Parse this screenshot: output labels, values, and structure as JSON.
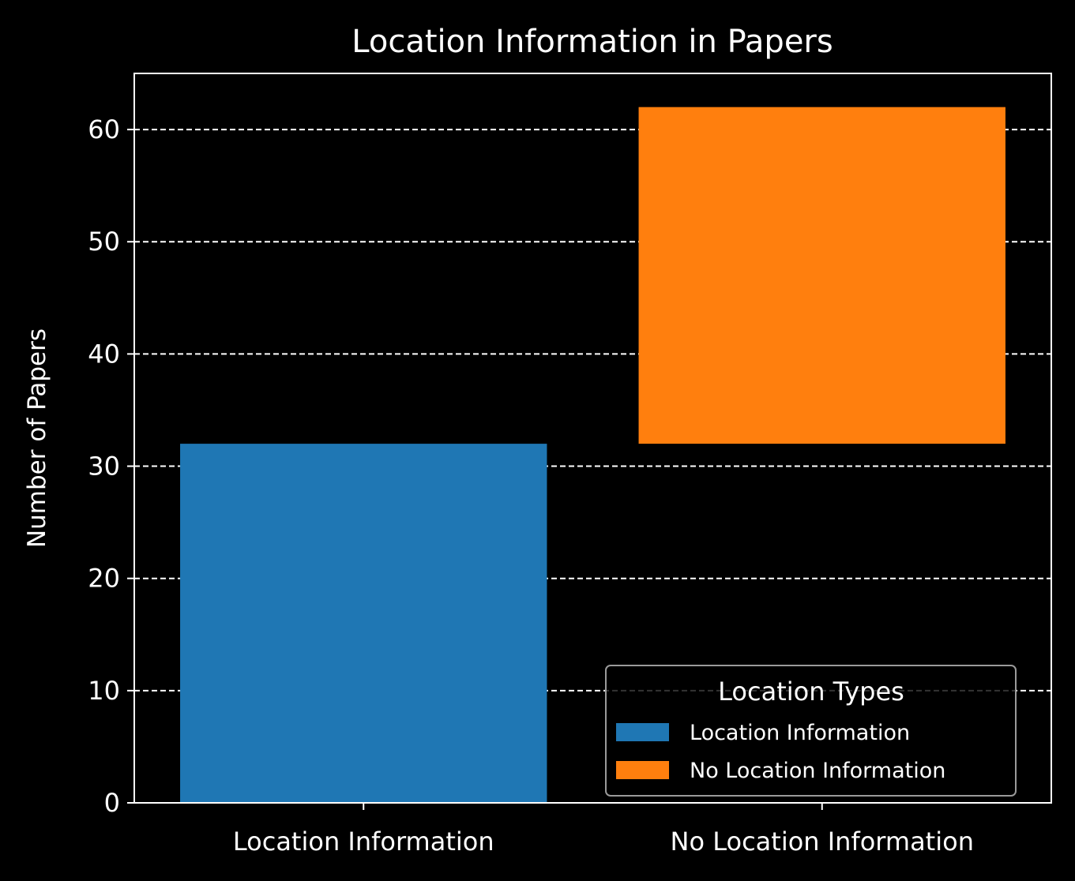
{
  "chart_data": {
    "type": "bar",
    "title": "Location Information in Papers",
    "xlabel": "",
    "ylabel": "Number of Papers",
    "categories": [
      "Location Information",
      "No Location Information"
    ],
    "series": [
      {
        "name": "Location Information",
        "category": "Location Information",
        "bottom": 0,
        "value": 32,
        "color": "#1f77b4"
      },
      {
        "name": "No Location Information",
        "category": "No Location Information",
        "bottom": 32,
        "value": 30,
        "color": "#ff7f0e"
      }
    ],
    "ylim": [
      0,
      65
    ],
    "yticks": [
      0,
      10,
      20,
      30,
      40,
      50,
      60
    ],
    "grid": {
      "axis": "y",
      "style": "dashed",
      "color": "#ffffff"
    },
    "legend": {
      "title": "Location Types",
      "placement": "lower-right",
      "entries": [
        "Location Information",
        "No Location Information"
      ]
    },
    "colors": {
      "background": "#000000",
      "axes": "#ffffff",
      "text": "#ffffff"
    }
  }
}
